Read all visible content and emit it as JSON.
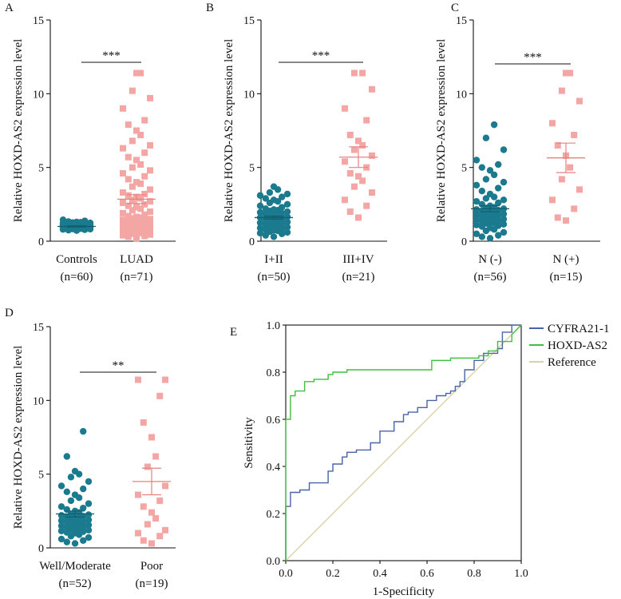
{
  "colors": {
    "teal": "#1B7A8E",
    "pink": "#F4A6A4",
    "cyfra": "#4A63A6",
    "hoxd": "#3FBF3F",
    "reference": "#D9D3A8"
  },
  "chart_data": [
    {
      "id": "A",
      "type": "scatter",
      "panel_label": "A",
      "ylabel": "Relative HOXD-AS2 expression level",
      "ylim": [
        0,
        15
      ],
      "yticks": [
        "0",
        "5",
        "10",
        "15"
      ],
      "groups": [
        {
          "name": "Controls",
          "n": "(n=60)",
          "mean": 1.0,
          "sem": 0.04,
          "marker": "circle",
          "color": "#1B7A8E",
          "values": [
            0.72,
            0.75,
            0.78,
            0.8,
            0.82,
            0.83,
            0.85,
            0.86,
            0.87,
            0.88,
            0.89,
            0.9,
            0.91,
            0.92,
            0.93,
            0.94,
            0.95,
            0.95,
            0.96,
            0.97,
            0.97,
            0.98,
            0.98,
            0.99,
            1.0,
            1.0,
            1.01,
            1.01,
            1.02,
            1.02,
            1.03,
            1.03,
            1.04,
            1.05,
            1.05,
            1.06,
            1.07,
            1.08,
            1.08,
            1.09,
            1.1,
            1.11,
            1.12,
            1.13,
            1.14,
            1.15,
            1.16,
            1.17,
            1.18,
            1.19,
            1.2,
            1.21,
            1.22,
            1.24,
            1.26,
            1.28,
            1.3,
            1.33,
            1.38,
            1.45
          ]
        },
        {
          "name": "LUAD",
          "n": "(n=71)",
          "mean": 2.85,
          "sem": 0.3,
          "marker": "square",
          "color": "#F4A6A4",
          "values": [
            0.2,
            0.3,
            0.35,
            0.4,
            0.45,
            0.5,
            0.55,
            0.6,
            0.65,
            0.7,
            0.75,
            0.8,
            0.85,
            0.9,
            0.95,
            1.0,
            1.05,
            1.1,
            1.15,
            1.2,
            1.25,
            1.3,
            1.35,
            1.4,
            1.45,
            1.5,
            1.55,
            1.6,
            1.65,
            1.7,
            1.8,
            1.9,
            2.0,
            2.1,
            2.2,
            2.3,
            2.4,
            2.5,
            2.6,
            2.7,
            2.8,
            2.9,
            3.0,
            3.1,
            3.2,
            3.3,
            3.5,
            3.7,
            3.9,
            4.0,
            4.2,
            4.4,
            4.6,
            4.8,
            5.0,
            5.2,
            5.5,
            5.7,
            6.0,
            6.3,
            6.5,
            6.8,
            7.2,
            7.5,
            7.9,
            8.2,
            9.0,
            9.7,
            10.2,
            11.4,
            11.4
          ]
        }
      ],
      "significance": "***"
    },
    {
      "id": "B",
      "type": "scatter",
      "panel_label": "B",
      "ylabel": "Relative HOXD-AS2 expression level",
      "ylim": [
        0,
        15
      ],
      "yticks": [
        "0",
        "5",
        "10",
        "15"
      ],
      "groups": [
        {
          "name": "I+II",
          "n": "(n=50)",
          "mean": 1.6,
          "sem": 0.1,
          "marker": "circle",
          "color": "#1B7A8E",
          "values": [
            0.3,
            0.4,
            0.5,
            0.55,
            0.6,
            0.65,
            0.7,
            0.75,
            0.8,
            0.85,
            0.9,
            0.95,
            1.0,
            1.05,
            1.1,
            1.15,
            1.2,
            1.25,
            1.3,
            1.35,
            1.4,
            1.45,
            1.5,
            1.55,
            1.6,
            1.65,
            1.7,
            1.75,
            1.8,
            1.85,
            1.9,
            1.95,
            2.0,
            2.05,
            2.1,
            2.15,
            2.2,
            2.3,
            2.4,
            2.5,
            2.6,
            2.7,
            2.8,
            2.9,
            3.0,
            3.1,
            3.2,
            3.3,
            3.5,
            3.7
          ]
        },
        {
          "name": "III+IV",
          "n": "(n=21)",
          "mean": 5.7,
          "sem": 0.7,
          "marker": "square",
          "color": "#F4A6A4",
          "values": [
            1.6,
            2.0,
            2.4,
            2.8,
            3.3,
            3.7,
            4.1,
            4.6,
            5.0,
            5.4,
            5.8,
            6.2,
            6.5,
            6.8,
            7.2,
            8.2,
            9.0,
            10.3,
            11.4,
            11.4,
            4.4
          ]
        }
      ],
      "significance": "***"
    },
    {
      "id": "C",
      "type": "scatter",
      "panel_label": "C",
      "ylabel": "Relative HOXD-AS2 expression level",
      "ylim": [
        0,
        15
      ],
      "yticks": [
        "0",
        "5",
        "10",
        "15"
      ],
      "groups": [
        {
          "name": "N (-)",
          "n": "(n=56)",
          "mean": 2.2,
          "sem": 0.2,
          "marker": "circle",
          "color": "#1B7A8E",
          "values": [
            0.2,
            0.3,
            0.4,
            0.5,
            0.6,
            0.7,
            0.8,
            0.9,
            1.0,
            1.05,
            1.1,
            1.15,
            1.2,
            1.25,
            1.3,
            1.35,
            1.4,
            1.45,
            1.5,
            1.55,
            1.6,
            1.65,
            1.7,
            1.75,
            1.8,
            1.85,
            1.9,
            1.95,
            2.0,
            2.05,
            2.1,
            2.15,
            2.2,
            2.25,
            2.3,
            2.4,
            2.5,
            2.6,
            2.7,
            2.8,
            2.9,
            3.0,
            3.2,
            3.4,
            3.6,
            3.8,
            4.0,
            4.2,
            4.5,
            4.8,
            5.0,
            5.2,
            5.5,
            6.2,
            7.0,
            7.9
          ]
        },
        {
          "name": "N (+)",
          "n": "(n=15)",
          "mean": 5.65,
          "sem": 1.0,
          "marker": "square",
          "color": "#F4A6A4",
          "values": [
            1.4,
            1.6,
            2.2,
            2.8,
            3.5,
            4.2,
            5.0,
            5.8,
            6.5,
            7.2,
            8.0,
            9.5,
            10.2,
            11.4,
            11.4
          ]
        }
      ],
      "significance": "***"
    },
    {
      "id": "D",
      "type": "scatter",
      "panel_label": "D",
      "ylabel": "Relative HOXD-AS2 expression level",
      "ylim": [
        0,
        15
      ],
      "yticks": [
        "0",
        "5",
        "10",
        "15"
      ],
      "groups": [
        {
          "name": "Well/Moderate",
          "n": "(n=52)",
          "mean": 2.3,
          "sem": 0.2,
          "marker": "circle",
          "color": "#1B7A8E",
          "values": [
            0.3,
            0.4,
            0.5,
            0.6,
            0.7,
            0.8,
            0.9,
            1.0,
            1.05,
            1.1,
            1.15,
            1.2,
            1.25,
            1.3,
            1.35,
            1.4,
            1.45,
            1.5,
            1.55,
            1.6,
            1.65,
            1.7,
            1.75,
            1.8,
            1.85,
            1.9,
            1.95,
            2.0,
            2.05,
            2.1,
            2.15,
            2.2,
            2.25,
            2.3,
            2.4,
            2.5,
            2.6,
            2.7,
            2.8,
            3.0,
            3.2,
            3.4,
            3.6,
            3.8,
            4.0,
            4.2,
            4.5,
            4.8,
            5.0,
            5.2,
            6.2,
            7.9
          ]
        },
        {
          "name": "Poor",
          "n": "(n=19)",
          "mean": 4.5,
          "sem": 0.9,
          "marker": "square",
          "color": "#F4A6A4",
          "values": [
            0.3,
            0.5,
            0.8,
            1.2,
            1.6,
            2.0,
            2.4,
            2.8,
            3.2,
            3.6,
            4.2,
            5.5,
            6.2,
            7.5,
            8.5,
            10.3,
            11.4,
            11.4,
            1.0
          ]
        }
      ],
      "significance": "**"
    },
    {
      "id": "E",
      "type": "line",
      "panel_label": "E",
      "xlabel": "1-Specificity",
      "ylabel": "Sensitivity",
      "xlim": [
        0,
        1
      ],
      "ylim": [
        0,
        1
      ],
      "xticks": [
        "0.0",
        "0.2",
        "0.4",
        "0.6",
        "0.8",
        "1.0"
      ],
      "yticks": [
        "0.0",
        "0.2",
        "0.4",
        "0.6",
        "0.8",
        "1.0"
      ],
      "series": [
        {
          "name": "CYFRA21-1",
          "color": "#4A63A6",
          "x": [
            0,
            0,
            0.02,
            0.02,
            0.06,
            0.06,
            0.1,
            0.1,
            0.18,
            0.18,
            0.2,
            0.2,
            0.24,
            0.24,
            0.26,
            0.26,
            0.3,
            0.3,
            0.36,
            0.36,
            0.4,
            0.4,
            0.46,
            0.46,
            0.5,
            0.5,
            0.52,
            0.52,
            0.56,
            0.56,
            0.6,
            0.6,
            0.64,
            0.64,
            0.68,
            0.68,
            0.7,
            0.7,
            0.72,
            0.72,
            0.74,
            0.74,
            0.76,
            0.76,
            0.8,
            0.8,
            0.84,
            0.84,
            0.9,
            0.9,
            0.92,
            0.92,
            0.96,
            0.96,
            1.0
          ],
          "y": [
            0,
            0.23,
            0.23,
            0.29,
            0.29,
            0.3,
            0.3,
            0.33,
            0.33,
            0.38,
            0.38,
            0.41,
            0.41,
            0.44,
            0.44,
            0.46,
            0.46,
            0.47,
            0.47,
            0.5,
            0.5,
            0.55,
            0.55,
            0.59,
            0.59,
            0.62,
            0.62,
            0.63,
            0.63,
            0.65,
            0.65,
            0.68,
            0.68,
            0.7,
            0.7,
            0.71,
            0.71,
            0.72,
            0.72,
            0.74,
            0.74,
            0.76,
            0.76,
            0.81,
            0.81,
            0.85,
            0.85,
            0.88,
            0.88,
            0.9,
            0.9,
            0.97,
            0.97,
            1.0,
            1.0
          ]
        },
        {
          "name": "HOXD-AS2",
          "color": "#3FBF3F",
          "x": [
            0,
            0,
            0.02,
            0.02,
            0.04,
            0.04,
            0.08,
            0.08,
            0.12,
            0.12,
            0.18,
            0.18,
            0.2,
            0.2,
            0.26,
            0.26,
            0.62,
            0.62,
            0.7,
            0.7,
            0.82,
            0.82,
            0.86,
            0.86,
            0.9,
            0.9,
            0.96,
            0.96,
            1.0
          ],
          "y": [
            0,
            0.6,
            0.6,
            0.7,
            0.7,
            0.72,
            0.72,
            0.76,
            0.76,
            0.77,
            0.77,
            0.79,
            0.79,
            0.8,
            0.8,
            0.81,
            0.81,
            0.85,
            0.85,
            0.86,
            0.86,
            0.87,
            0.87,
            0.89,
            0.89,
            0.93,
            0.93,
            0.96,
            1.0
          ]
        },
        {
          "name": "Reference",
          "color": "#D9D3A8",
          "x": [
            0,
            1
          ],
          "y": [
            0,
            1
          ]
        }
      ]
    }
  ]
}
